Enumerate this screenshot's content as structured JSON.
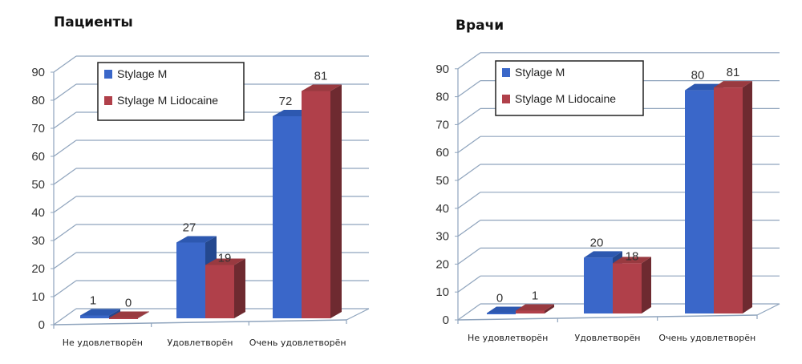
{
  "colors": {
    "series1": "#3a67c9",
    "series1_top": "#2d58b0",
    "series1_side": "#24488f",
    "series2": "#b0404a",
    "series2_top": "#993a40",
    "series2_side": "#6e2a30",
    "grid": "#8fa4bd"
  },
  "chart_data": [
    {
      "type": "bar",
      "title": "Пациенты",
      "categories": [
        "Не удовлетворён",
        "Удовлетворён",
        "Очень удовлетворён"
      ],
      "series": [
        {
          "name": "Stylage M",
          "values": [
            1,
            27,
            72
          ]
        },
        {
          "name": "Stylage M Lidocaine",
          "values": [
            0,
            19,
            81
          ]
        }
      ],
      "xlabel": "",
      "ylabel": "",
      "ylim": [
        0,
        90
      ],
      "yticks": [
        "0",
        "10",
        "20",
        "30",
        "40",
        "50",
        "60",
        "70",
        "80",
        "90"
      ],
      "grid": true,
      "legend_position": "top-left inside",
      "style": "3d clustered column"
    },
    {
      "type": "bar",
      "title": "Врачи",
      "categories": [
        "Не удовлетворён",
        "Удовлетворён",
        "Очень удовлетворён"
      ],
      "series": [
        {
          "name": "Stylage M",
          "values": [
            0,
            20,
            80
          ]
        },
        {
          "name": "Stylage M Lidocaine",
          "values": [
            1,
            18,
            81
          ]
        }
      ],
      "xlabel": "",
      "ylabel": "",
      "ylim": [
        0,
        90
      ],
      "yticks": [
        "0",
        "10",
        "20",
        "30",
        "40",
        "50",
        "60",
        "70",
        "80",
        "90"
      ],
      "grid": true,
      "legend_position": "top-left inside",
      "style": "3d clustered column"
    }
  ]
}
